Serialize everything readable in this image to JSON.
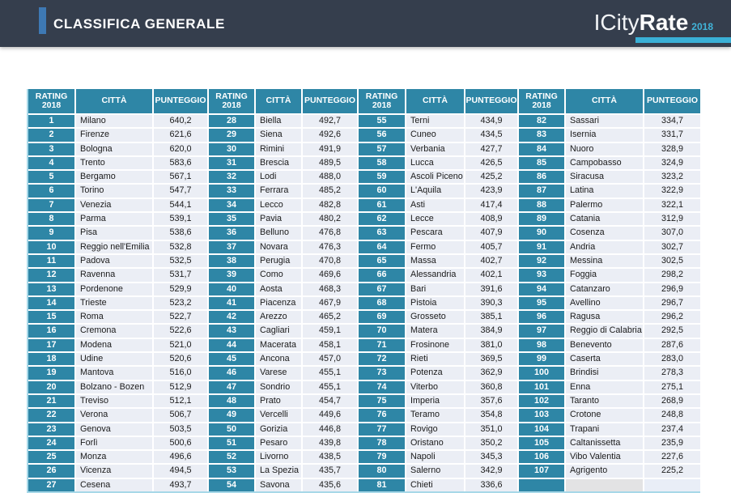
{
  "header": {
    "title": "CLASSIFICA GENERALE",
    "logo": {
      "name_regular": "ICity",
      "name_bold": "Rate",
      "year": "2018"
    }
  },
  "colors": {
    "header_bg": "#353e4d",
    "accent_bar": "#3e79b4",
    "table_teal": "#2e86a6",
    "logo_light_blue": "#3ab0d6",
    "row_bg": "#ebeef5"
  },
  "table": {
    "column_headers": {
      "rating": "RATING 2018",
      "city": "CITTÀ",
      "score": "PUNTEGGIO"
    },
    "groups": [
      {
        "rows": [
          {
            "rank": "1",
            "city": "Milano",
            "score": "640,2"
          },
          {
            "rank": "2",
            "city": "Firenze",
            "score": "621,6"
          },
          {
            "rank": "3",
            "city": "Bologna",
            "score": "620,0"
          },
          {
            "rank": "4",
            "city": "Trento",
            "score": "583,6"
          },
          {
            "rank": "5",
            "city": "Bergamo",
            "score": "567,1"
          },
          {
            "rank": "6",
            "city": "Torino",
            "score": "547,7"
          },
          {
            "rank": "7",
            "city": "Venezia",
            "score": "544,1"
          },
          {
            "rank": "8",
            "city": "Parma",
            "score": "539,1"
          },
          {
            "rank": "9",
            "city": "Pisa",
            "score": "538,6"
          },
          {
            "rank": "10",
            "city": "Reggio nell'Emilia",
            "score": "532,8"
          },
          {
            "rank": "11",
            "city": "Padova",
            "score": "532,5"
          },
          {
            "rank": "12",
            "city": "Ravenna",
            "score": "531,7"
          },
          {
            "rank": "13",
            "city": "Pordenone",
            "score": "529,9"
          },
          {
            "rank": "14",
            "city": "Trieste",
            "score": "523,2"
          },
          {
            "rank": "15",
            "city": "Roma",
            "score": "522,7"
          },
          {
            "rank": "16",
            "city": "Cremona",
            "score": "522,6"
          },
          {
            "rank": "17",
            "city": "Modena",
            "score": "521,0"
          },
          {
            "rank": "18",
            "city": "Udine",
            "score": "520,6"
          },
          {
            "rank": "19",
            "city": "Mantova",
            "score": "516,0"
          },
          {
            "rank": "20",
            "city": "Bolzano - Bozen",
            "score": "512,9"
          },
          {
            "rank": "21",
            "city": "Treviso",
            "score": "512,1"
          },
          {
            "rank": "22",
            "city": "Verona",
            "score": "506,7"
          },
          {
            "rank": "23",
            "city": "Genova",
            "score": "503,5"
          },
          {
            "rank": "24",
            "city": "Forlì",
            "score": "500,6"
          },
          {
            "rank": "25",
            "city": "Monza",
            "score": "496,6"
          },
          {
            "rank": "26",
            "city": "Vicenza",
            "score": "494,5"
          },
          {
            "rank": "27",
            "city": "Cesena",
            "score": "493,7"
          }
        ]
      },
      {
        "rows": [
          {
            "rank": "28",
            "city": "Biella",
            "score": "492,7"
          },
          {
            "rank": "29",
            "city": "Siena",
            "score": "492,6"
          },
          {
            "rank": "30",
            "city": "Rimini",
            "score": "491,9"
          },
          {
            "rank": "31",
            "city": "Brescia",
            "score": "489,5"
          },
          {
            "rank": "32",
            "city": "Lodi",
            "score": "488,0"
          },
          {
            "rank": "33",
            "city": "Ferrara",
            "score": "485,2"
          },
          {
            "rank": "34",
            "city": "Lecco",
            "score": "482,8"
          },
          {
            "rank": "35",
            "city": "Pavia",
            "score": "480,2"
          },
          {
            "rank": "36",
            "city": "Belluno",
            "score": "476,8"
          },
          {
            "rank": "37",
            "city": "Novara",
            "score": "476,3"
          },
          {
            "rank": "38",
            "city": "Perugia",
            "score": "470,8"
          },
          {
            "rank": "39",
            "city": "Como",
            "score": "469,6"
          },
          {
            "rank": "40",
            "city": "Aosta",
            "score": "468,3"
          },
          {
            "rank": "41",
            "city": "Piacenza",
            "score": "467,9"
          },
          {
            "rank": "42",
            "city": "Arezzo",
            "score": "465,2"
          },
          {
            "rank": "43",
            "city": "Cagliari",
            "score": "459,1"
          },
          {
            "rank": "44",
            "city": "Macerata",
            "score": "458,1"
          },
          {
            "rank": "45",
            "city": "Ancona",
            "score": "457,0"
          },
          {
            "rank": "46",
            "city": "Varese",
            "score": "455,1"
          },
          {
            "rank": "47",
            "city": "Sondrio",
            "score": "455,1"
          },
          {
            "rank": "48",
            "city": "Prato",
            "score": "454,7"
          },
          {
            "rank": "49",
            "city": "Vercelli",
            "score": "449,6"
          },
          {
            "rank": "50",
            "city": "Gorizia",
            "score": "446,8"
          },
          {
            "rank": "51",
            "city": "Pesaro",
            "score": "439,8"
          },
          {
            "rank": "52",
            "city": "Livorno",
            "score": "438,5"
          },
          {
            "rank": "53",
            "city": "La Spezia",
            "score": "435,7"
          },
          {
            "rank": "54",
            "city": "Savona",
            "score": "435,6"
          }
        ]
      },
      {
        "rows": [
          {
            "rank": "55",
            "city": "Terni",
            "score": "434,9"
          },
          {
            "rank": "56",
            "city": "Cuneo",
            "score": "434,5"
          },
          {
            "rank": "57",
            "city": "Verbania",
            "score": "427,7"
          },
          {
            "rank": "58",
            "city": "Lucca",
            "score": "426,5"
          },
          {
            "rank": "59",
            "city": "Ascoli Piceno",
            "score": "425,2"
          },
          {
            "rank": "60",
            "city": "L'Aquila",
            "score": "423,9"
          },
          {
            "rank": "61",
            "city": "Asti",
            "score": "417,4"
          },
          {
            "rank": "62",
            "city": "Lecce",
            "score": "408,9"
          },
          {
            "rank": "63",
            "city": "Pescara",
            "score": "407,9"
          },
          {
            "rank": "64",
            "city": "Fermo",
            "score": "405,7"
          },
          {
            "rank": "65",
            "city": "Massa",
            "score": "402,7"
          },
          {
            "rank": "66",
            "city": "Alessandria",
            "score": "402,1"
          },
          {
            "rank": "67",
            "city": "Bari",
            "score": "391,6"
          },
          {
            "rank": "68",
            "city": "Pistoia",
            "score": "390,3"
          },
          {
            "rank": "69",
            "city": "Grosseto",
            "score": "385,1"
          },
          {
            "rank": "70",
            "city": "Matera",
            "score": "384,9"
          },
          {
            "rank": "71",
            "city": "Frosinone",
            "score": "381,0"
          },
          {
            "rank": "72",
            "city": "Rieti",
            "score": "369,5"
          },
          {
            "rank": "73",
            "city": "Potenza",
            "score": "362,9"
          },
          {
            "rank": "74",
            "city": "Viterbo",
            "score": "360,8"
          },
          {
            "rank": "75",
            "city": "Imperia",
            "score": "357,6"
          },
          {
            "rank": "76",
            "city": "Teramo",
            "score": "354,8"
          },
          {
            "rank": "77",
            "city": "Rovigo",
            "score": "351,0"
          },
          {
            "rank": "78",
            "city": "Oristano",
            "score": "350,2"
          },
          {
            "rank": "79",
            "city": "Napoli",
            "score": "345,3"
          },
          {
            "rank": "80",
            "city": "Salerno",
            "score": "342,9"
          },
          {
            "rank": "81",
            "city": "Chieti",
            "score": "336,6"
          }
        ]
      },
      {
        "rows": [
          {
            "rank": "82",
            "city": "Sassari",
            "score": "334,7"
          },
          {
            "rank": "83",
            "city": "Isernia",
            "score": "331,7"
          },
          {
            "rank": "84",
            "city": "Nuoro",
            "score": "328,9"
          },
          {
            "rank": "85",
            "city": "Campobasso",
            "score": "324,9"
          },
          {
            "rank": "86",
            "city": "Siracusa",
            "score": "323,2"
          },
          {
            "rank": "87",
            "city": "Latina",
            "score": "322,9"
          },
          {
            "rank": "88",
            "city": "Palermo",
            "score": "322,1"
          },
          {
            "rank": "89",
            "city": "Catania",
            "score": "312,9"
          },
          {
            "rank": "90",
            "city": "Cosenza",
            "score": "307,0"
          },
          {
            "rank": "91",
            "city": "Andria",
            "score": "302,7"
          },
          {
            "rank": "92",
            "city": "Messina",
            "score": "302,5"
          },
          {
            "rank": "93",
            "city": "Foggia",
            "score": "298,2"
          },
          {
            "rank": "94",
            "city": "Catanzaro",
            "score": "296,9"
          },
          {
            "rank": "95",
            "city": "Avellino",
            "score": "296,7"
          },
          {
            "rank": "96",
            "city": "Ragusa",
            "score": "296,2"
          },
          {
            "rank": "97",
            "city": "Reggio di Calabria",
            "score": "292,5"
          },
          {
            "rank": "98",
            "city": "Benevento",
            "score": "287,6"
          },
          {
            "rank": "99",
            "city": "Caserta",
            "score": "283,0"
          },
          {
            "rank": "100",
            "city": "Brindisi",
            "score": "278,3"
          },
          {
            "rank": "101",
            "city": "Enna",
            "score": "275,1"
          },
          {
            "rank": "102",
            "city": "Taranto",
            "score": "268,9"
          },
          {
            "rank": "103",
            "city": "Crotone",
            "score": "248,8"
          },
          {
            "rank": "104",
            "city": "Trapani",
            "score": "237,4"
          },
          {
            "rank": "105",
            "city": "Caltanissetta",
            "score": "235,9"
          },
          {
            "rank": "106",
            "city": "Vibo Valentia",
            "score": "227,6"
          },
          {
            "rank": "107",
            "city": "Agrigento",
            "score": "225,2"
          }
        ]
      }
    ]
  }
}
